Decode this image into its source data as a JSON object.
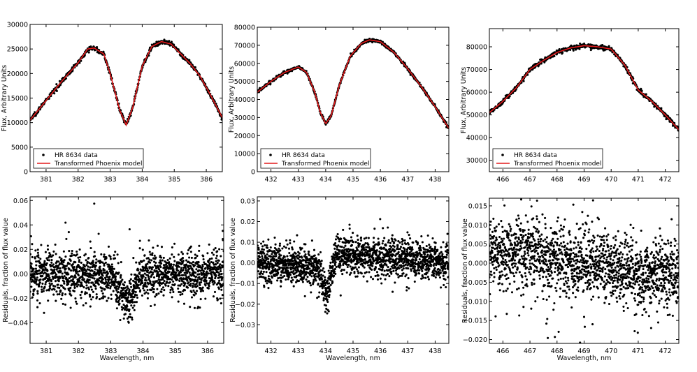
{
  "chart_data": [
    {
      "type": "scatter",
      "ylabel": "Flux, Arbitrary Units",
      "xlim": [
        380.5,
        386.5
      ],
      "ylim": [
        0,
        30000
      ],
      "xticks": [
        381,
        382,
        383,
        384,
        385,
        386
      ],
      "yticks": [
        0,
        5000,
        10000,
        15000,
        20000,
        25000,
        30000
      ],
      "legend": "lower-left",
      "series": [
        {
          "name": "HR 8634 data",
          "style": "points",
          "color": "#000000",
          "density": 700,
          "noise": 220
        },
        {
          "name": "Transformed Phoenix model",
          "style": "line",
          "color": "#e41a1c"
        }
      ],
      "model": {
        "x": [
          380.5,
          381.0,
          381.5,
          382.0,
          382.3,
          382.5,
          382.8,
          383.0,
          383.3,
          383.5,
          383.7,
          384.0,
          384.3,
          384.6,
          384.9,
          385.2,
          385.5,
          385.8,
          386.1,
          386.5
        ],
        "y": [
          10500,
          14500,
          18500,
          22200,
          25000,
          25200,
          24000,
          20000,
          12500,
          9500,
          13000,
          21500,
          25500,
          26500,
          26000,
          24000,
          22000,
          19500,
          16000,
          11000
        ]
      }
    },
    {
      "type": "scatter",
      "ylabel": "Flux, Arbitrary Units",
      "xlim": [
        431.5,
        438.5
      ],
      "ylim": [
        0,
        80000
      ],
      "xticks": [
        432,
        433,
        434,
        435,
        436,
        437,
        438
      ],
      "yticks": [
        0,
        10000,
        20000,
        30000,
        40000,
        50000,
        60000,
        70000,
        80000
      ],
      "legend": "lower-left",
      "series": [
        {
          "name": "HR 8634 data",
          "style": "points",
          "color": "#000000",
          "density": 700,
          "noise": 450
        },
        {
          "name": "Transformed Phoenix model",
          "style": "line",
          "color": "#e41a1c"
        }
      ],
      "model": {
        "x": [
          431.5,
          432.0,
          432.5,
          433.0,
          433.3,
          433.6,
          433.8,
          434.0,
          434.2,
          434.5,
          434.9,
          435.3,
          435.6,
          436.0,
          436.5,
          437.0,
          437.5,
          438.0,
          438.5
        ],
        "y": [
          44000,
          50000,
          55000,
          58000,
          55000,
          44000,
          33000,
          26500,
          31000,
          48000,
          64000,
          71000,
          73000,
          72000,
          66000,
          57000,
          47000,
          36000,
          24000
        ]
      }
    },
    {
      "type": "scatter",
      "ylabel": "Flux, Arbitrary Units",
      "xlim": [
        465.5,
        472.5
      ],
      "ylim": [
        25000,
        88000
      ],
      "xticks": [
        466,
        467,
        468,
        469,
        470,
        471,
        472
      ],
      "yticks": [
        30000,
        40000,
        50000,
        60000,
        70000,
        80000
      ],
      "legend": "lower-left",
      "series": [
        {
          "name": "HR 8634 data",
          "style": "points",
          "color": "#000000",
          "density": 700,
          "noise": 500
        },
        {
          "name": "Transformed Phoenix model",
          "style": "line",
          "color": "#e41a1c"
        }
      ],
      "model": {
        "x": [
          465.5,
          466.0,
          466.5,
          467.0,
          467.5,
          468.0,
          468.5,
          469.0,
          469.5,
          470.0,
          470.5,
          471.0,
          471.5,
          472.0,
          472.5
        ],
        "y": [
          51000,
          56000,
          62000,
          70000,
          74000,
          77500,
          79500,
          80500,
          80000,
          79000,
          72000,
          61000,
          56000,
          50000,
          43500
        ]
      }
    },
    {
      "type": "scatter",
      "xlabel": "Wavelength, nm",
      "ylabel": "Residuals, fraction of flux value",
      "xlim": [
        380.5,
        386.5
      ],
      "ylim": [
        -0.057,
        0.063
      ],
      "xticks": [
        381,
        382,
        383,
        384,
        385,
        386
      ],
      "yticks": [
        -0.04,
        -0.02,
        0.0,
        0.02,
        0.04,
        0.06
      ],
      "yticklabels": [
        "−0.04",
        "−0.02",
        "0.00",
        "0.02",
        "0.04",
        "0.06"
      ],
      "series": [
        {
          "name": "residuals",
          "style": "points",
          "color": "#000000",
          "density": 1700,
          "noise": 0.009
        }
      ],
      "trend": {
        "x": [
          380.5,
          383.0,
          383.3,
          383.5,
          383.7,
          384.0,
          386.5
        ],
        "y": [
          0.0,
          -0.002,
          -0.012,
          -0.025,
          -0.012,
          0.0,
          0.0
        ]
      }
    },
    {
      "type": "scatter",
      "xlabel": "Wavelength, nm",
      "ylabel": "Residuals, fraction of flux value",
      "xlim": [
        431.5,
        438.5
      ],
      "ylim": [
        -0.039,
        0.032
      ],
      "xticks": [
        432,
        433,
        434,
        435,
        436,
        437,
        438
      ],
      "yticks": [
        -0.03,
        -0.02,
        -0.01,
        0.0,
        0.01,
        0.02,
        0.03
      ],
      "yticklabels": [
        "−0.03",
        "−0.02",
        "−0.01",
        "0.00",
        "0.01",
        "0.02",
        "0.03"
      ],
      "series": [
        {
          "name": "residuals",
          "style": "points",
          "color": "#000000",
          "density": 1900,
          "noise": 0.0045
        }
      ],
      "trend": {
        "x": [
          431.5,
          433.7,
          433.9,
          434.05,
          434.2,
          434.4,
          438.5
        ],
        "y": [
          0.0,
          -0.002,
          -0.01,
          -0.015,
          -0.004,
          0.004,
          0.0
        ]
      }
    },
    {
      "type": "scatter",
      "xlabel": "Wavelength, nm",
      "ylabel": "Residuals, fraction of flux value",
      "xlim": [
        465.5,
        472.5
      ],
      "ylim": [
        -0.021,
        0.017
      ],
      "xticks": [
        466,
        467,
        468,
        469,
        470,
        471,
        472
      ],
      "yticks": [
        -0.02,
        -0.015,
        -0.01,
        -0.005,
        0.0,
        0.005,
        0.01,
        0.015
      ],
      "yticklabels": [
        "−0.020",
        "−0.015",
        "−0.010",
        "−0.005",
        "0.000",
        "0.005",
        "0.010",
        "0.015"
      ],
      "series": [
        {
          "name": "residuals",
          "style": "points",
          "color": "#000000",
          "density": 1700,
          "noise": 0.0045
        }
      ],
      "trend": {
        "x": [
          465.5,
          467.0,
          468.0,
          469.0,
          470.0,
          471.0,
          471.3,
          471.6,
          472.5
        ],
        "y": [
          0.003,
          0.003,
          0.001,
          0.0,
          -0.001,
          -0.003,
          -0.005,
          -0.002,
          -0.003
        ]
      }
    }
  ]
}
